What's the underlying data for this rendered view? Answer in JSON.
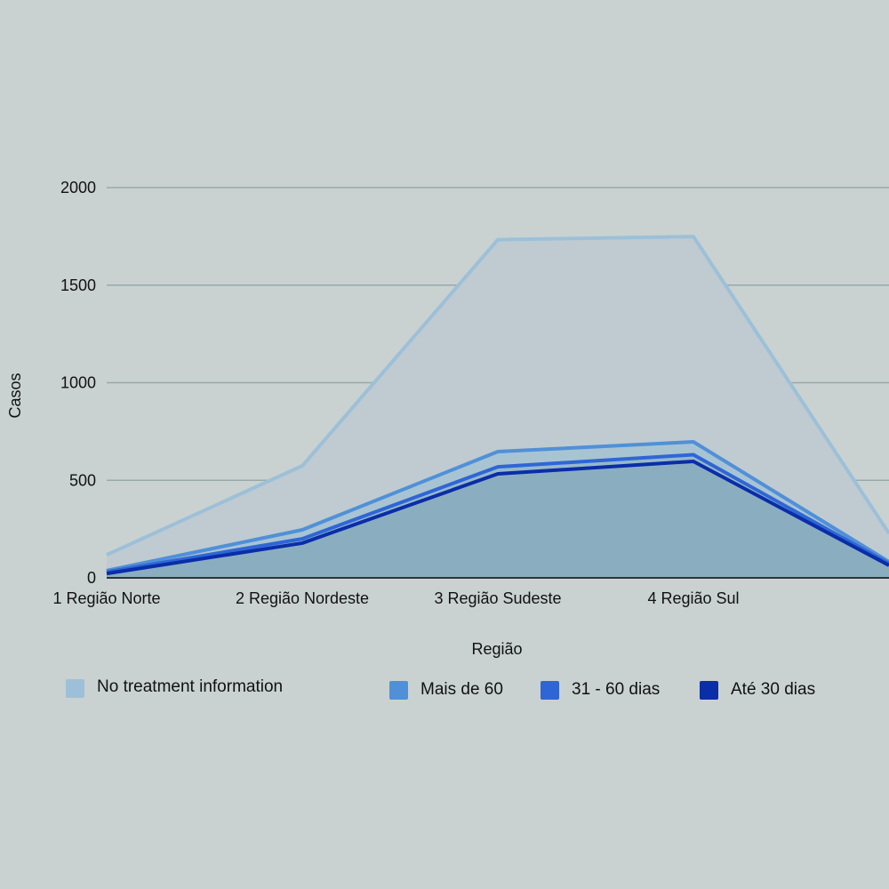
{
  "chart_data": {
    "type": "area",
    "stacked": false,
    "title": "",
    "xlabel": "Região",
    "ylabel": "Casos",
    "ylim": [
      0,
      2000
    ],
    "yticks": [
      0,
      500,
      1000,
      1500,
      2000
    ],
    "grid": true,
    "categories": [
      "1 Região Norte",
      "2 Região Nordeste",
      "3 Região Sudeste",
      "4 Região Sul",
      ""
    ],
    "series": [
      {
        "name": "No treatment information",
        "color": "#9dc0d8",
        "fill": "#bfcbd1",
        "values": [
          118,
          574,
          1733,
          1749,
          228
        ]
      },
      {
        "name": "Mais de 60",
        "color": "#5090d8",
        "fill": "#a8c4d3",
        "values": [
          37,
          246,
          647,
          697,
          82
        ]
      },
      {
        "name": "31 - 60 dias",
        "color": "#2f66d6",
        "fill": "#97b8ca",
        "values": [
          30,
          200,
          569,
          631,
          73
        ]
      },
      {
        "name": "Até 30 dias",
        "color": "#0a2da8",
        "fill": "#8aaec0",
        "values": [
          22,
          178,
          533,
          597,
          64
        ]
      }
    ],
    "legend_position": "bottom"
  }
}
